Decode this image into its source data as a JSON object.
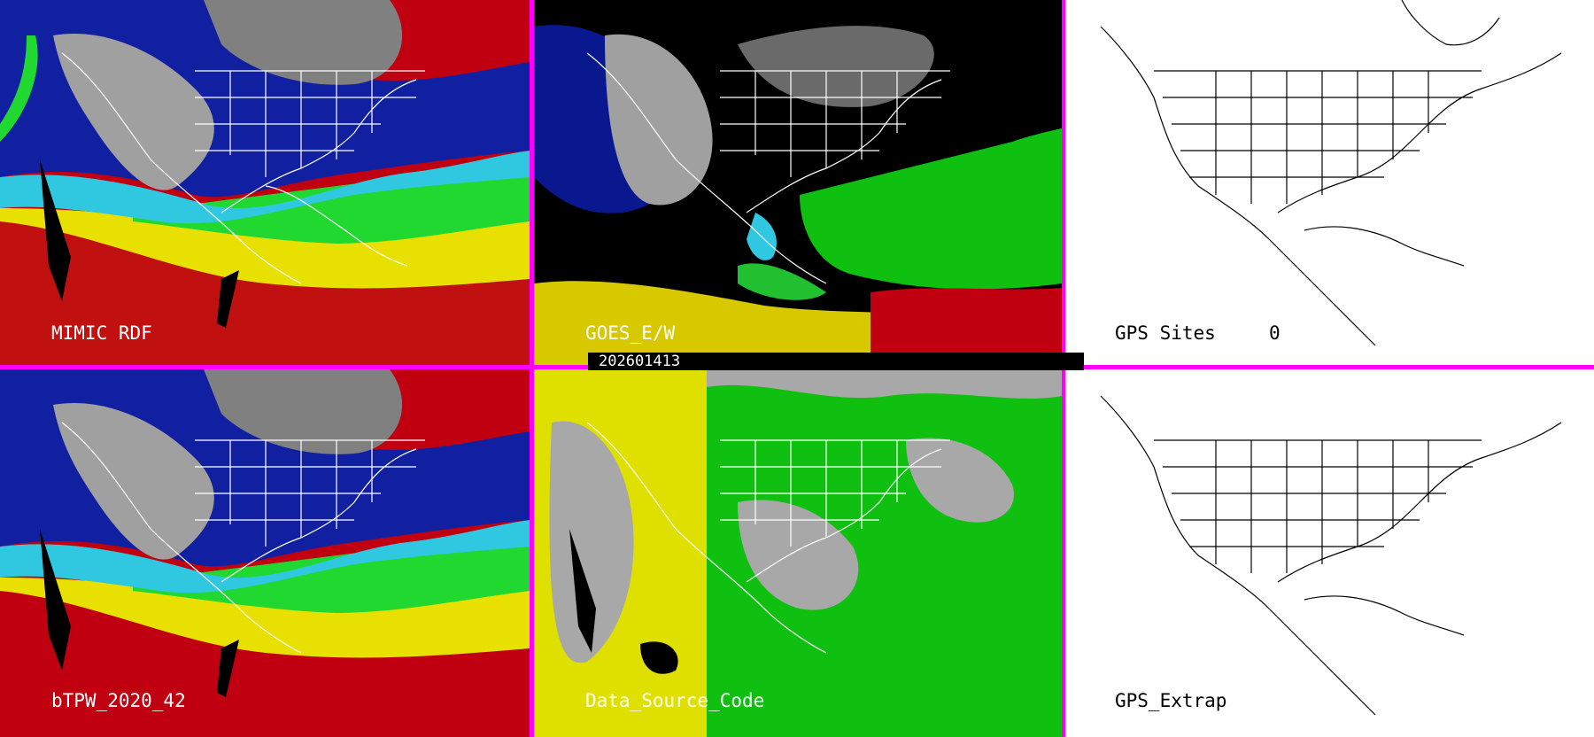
{
  "panels": [
    {
      "id": "mimic-rdf",
      "label": "MIMIC RDF",
      "style": "tpw"
    },
    {
      "id": "goes-ew",
      "label": "GOES_E/W",
      "style": "goes"
    },
    {
      "id": "gps-sites",
      "label": "GPS Sites",
      "count": "0",
      "style": "outline"
    },
    {
      "id": "btpw",
      "label": "bTPW_2020_42",
      "style": "tpw"
    },
    {
      "id": "data-source",
      "label": "Data_Source_Code",
      "style": "source"
    },
    {
      "id": "gps-extrap",
      "label": "GPS_Extrap",
      "style": "outline"
    }
  ],
  "timestamp": "202601413",
  "colors": {
    "border": "#ff00ff",
    "tpw_deep": "#b00000",
    "tpw_red": "#e01010",
    "tpw_yellow": "#e8e000",
    "tpw_green": "#20e020",
    "tpw_cyan": "#30d8e0",
    "tpw_blue": "#1020a0",
    "tpw_gray": "#9a9a9a",
    "source_yellow": "#e0e000",
    "source_green": "#10c010",
    "source_gray": "#a8a8a8"
  }
}
